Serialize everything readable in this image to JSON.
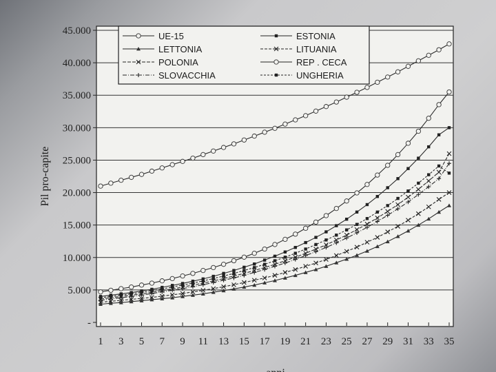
{
  "chart_data": {
    "type": "line",
    "title": "",
    "xlabel": "anni",
    "ylabel": "Pil pro-capite",
    "x": [
      1,
      2,
      3,
      4,
      5,
      6,
      7,
      8,
      9,
      10,
      11,
      12,
      13,
      14,
      15,
      16,
      17,
      18,
      19,
      20,
      21,
      22,
      23,
      24,
      25,
      26,
      27,
      28,
      29,
      30,
      31,
      32,
      33,
      34,
      35
    ],
    "x_ticks": [
      "1",
      "3",
      "5",
      "7",
      "9",
      "11",
      "13",
      "15",
      "17",
      "19",
      "21",
      "23",
      "25",
      "27",
      "29",
      "31",
      "33",
      "35"
    ],
    "y_ticks": [
      "-",
      "5.000",
      "10.000",
      "15.000",
      "20.000",
      "25.000",
      "30.000",
      "35.000",
      "40.000",
      "45.000"
    ],
    "ylim": [
      0,
      45000
    ],
    "xlim": [
      1,
      35
    ],
    "grid": "horizontal",
    "legend_position": "top",
    "series": [
      {
        "name": "UE-15",
        "marker": "circle",
        "color": "#333333",
        "values": [
          21000,
          21450,
          21900,
          22350,
          22800,
          23300,
          23800,
          24300,
          24800,
          25300,
          25850,
          26400,
          26950,
          27500,
          28100,
          28700,
          29300,
          29900,
          30550,
          31200,
          31850,
          32550,
          33250,
          33950,
          34700,
          35450,
          36200,
          37000,
          37800,
          38600,
          39450,
          40300,
          41150,
          42000,
          42900
        ]
      },
      {
        "name": "ESTONIA",
        "marker": "square",
        "color": "#333333",
        "values": [
          4000,
          4200,
          4400,
          4600,
          4850,
          5100,
          5400,
          5700,
          6000,
          6350,
          6700,
          7100,
          7550,
          8000,
          8500,
          9000,
          9600,
          10200,
          10850,
          11550,
          12300,
          13100,
          13950,
          14900,
          15900,
          17000,
          18150,
          19400,
          20750,
          22150,
          23700,
          25300,
          27050,
          28900,
          30000
        ]
      },
      {
        "name": "LETTONIA",
        "marker": "tri",
        "color": "#333333",
        "values": [
          2800,
          2950,
          3050,
          3200,
          3350,
          3500,
          3650,
          3800,
          4000,
          4200,
          4400,
          4650,
          4900,
          5150,
          5450,
          5750,
          6100,
          6450,
          6850,
          7250,
          7700,
          8150,
          8650,
          9200,
          9750,
          10350,
          11000,
          11700,
          12450,
          13250,
          14100,
          15000,
          15950,
          17000,
          18000
        ]
      },
      {
        "name": "LITUANIA",
        "marker": "x",
        "color": "#333333",
        "values": [
          3100,
          3250,
          3400,
          3550,
          3700,
          3850,
          4050,
          4250,
          4450,
          4700,
          4950,
          5200,
          5500,
          5800,
          6150,
          6500,
          6850,
          7250,
          7700,
          8150,
          8650,
          9150,
          9700,
          10300,
          10950,
          11600,
          12350,
          13100,
          13950,
          14800,
          15750,
          16750,
          17800,
          18950,
          20000
        ]
      },
      {
        "name": "POLONIA",
        "marker": "xbar",
        "color": "#333333",
        "values": [
          3600,
          3800,
          4000,
          4200,
          4400,
          4650,
          4900,
          5150,
          5450,
          5750,
          6050,
          6400,
          6750,
          7150,
          7550,
          8000,
          8450,
          8950,
          9500,
          10050,
          10650,
          11300,
          11950,
          12700,
          13450,
          14300,
          15150,
          16100,
          17100,
          18150,
          19300,
          20500,
          21800,
          23150,
          26000
        ]
      },
      {
        "name": "REP . CECA",
        "marker": "circle",
        "color": "#333333",
        "values": [
          4700,
          4950,
          5200,
          5450,
          5750,
          6050,
          6400,
          6750,
          7150,
          7550,
          8000,
          8450,
          8950,
          9500,
          10050,
          10650,
          11300,
          12000,
          12800,
          13600,
          14500,
          15450,
          16450,
          17550,
          18700,
          19950,
          21250,
          22700,
          24200,
          25850,
          27600,
          29450,
          31450,
          33550,
          35500
        ]
      },
      {
        "name": "SLOVACCHIA",
        "marker": "plus",
        "color": "#333333",
        "values": [
          3400,
          3600,
          3800,
          4000,
          4200,
          4450,
          4700,
          4950,
          5200,
          5500,
          5800,
          6150,
          6500,
          6850,
          7250,
          7700,
          8150,
          8650,
          9150,
          9700,
          10300,
          10900,
          11550,
          12250,
          13000,
          13800,
          14650,
          15550,
          16500,
          17500,
          18550,
          19700,
          20900,
          22150,
          24500
        ]
      },
      {
        "name": "UNGHERIA",
        "marker": "square",
        "color": "#333333",
        "values": [
          3800,
          4000,
          4200,
          4400,
          4650,
          4900,
          5150,
          5450,
          5750,
          6050,
          6400,
          6750,
          7150,
          7550,
          8000,
          8450,
          8950,
          9500,
          10050,
          10650,
          11300,
          12000,
          12700,
          13450,
          14250,
          15100,
          16000,
          17000,
          18000,
          19100,
          20250,
          21450,
          22750,
          24100,
          23000
        ]
      }
    ]
  }
}
